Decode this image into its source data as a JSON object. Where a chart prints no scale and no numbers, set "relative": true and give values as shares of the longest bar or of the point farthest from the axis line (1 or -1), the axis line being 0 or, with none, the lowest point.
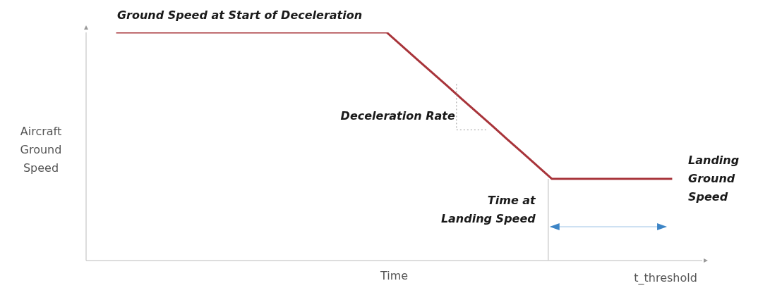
{
  "chart_data": {
    "type": "line",
    "relative": true,
    "xlabel": "Time",
    "ylabel": "Aircraft Ground Speed",
    "categories": [
      null,
      null,
      null,
      null,
      null,
      null,
      null,
      null,
      null,
      null,
      null,
      null,
      null,
      null,
      null,
      null,
      null,
      null,
      null,
      null,
      null,
      null,
      null,
      null,
      null,
      null,
      null,
      null,
      null,
      null,
      null,
      null,
      null,
      null,
      null,
      null,
      null,
      null,
      null,
      null,
      null,
      null
    ],
    "series": [
      {
        "color": "#a8343a",
        "values": [
          null,
          null,
          1,
          1,
          1,
          1,
          1,
          1,
          1,
          1,
          1,
          1,
          1,
          1,
          1,
          1,
          1,
          1,
          1,
          1,
          1,
          0.942,
          0.883,
          0.825,
          0.767,
          0.708,
          0.65,
          0.592,
          0.533,
          0.475,
          0.416,
          0.358,
          0.358,
          0.358,
          0.358,
          0.358,
          0.358,
          0.358,
          0.358,
          0.358,
          null,
          null
        ]
      }
    ],
    "annotations": [
      "Ground Speed at Start of Deceleration",
      "Deceleration Rate",
      "Landing Ground Speed",
      "t_threshold",
      "Time at Landing Speed"
    ],
    "grid": false,
    "legend": false,
    "marker": "none",
    "line_style": "solid"
  }
}
